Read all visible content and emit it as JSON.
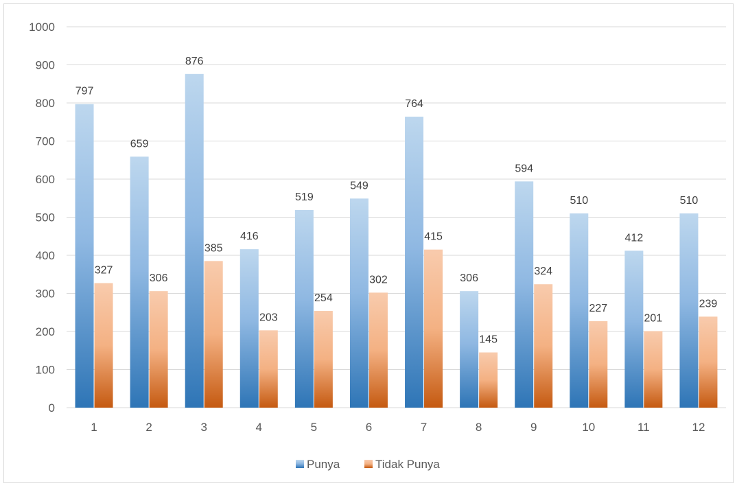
{
  "chart_data": {
    "type": "bar",
    "title": "",
    "xlabel": "",
    "ylabel": "",
    "categories": [
      "1",
      "2",
      "3",
      "4",
      "5",
      "6",
      "7",
      "8",
      "9",
      "10",
      "11",
      "12"
    ],
    "series": [
      {
        "name": "Punya",
        "values": [
          797,
          659,
          876,
          416,
          519,
          549,
          764,
          306,
          594,
          510,
          412,
          510
        ],
        "color": "#5b9bd5"
      },
      {
        "name": "Tidak Punya",
        "values": [
          327,
          306,
          385,
          203,
          254,
          302,
          415,
          145,
          324,
          227,
          201,
          239
        ],
        "color": "#ed7d31"
      }
    ],
    "ylim": [
      0,
      1000
    ],
    "yticks": [
      0,
      100,
      200,
      300,
      400,
      500,
      600,
      700,
      800,
      900,
      1000
    ],
    "grid": true,
    "legend_position": "bottom"
  }
}
